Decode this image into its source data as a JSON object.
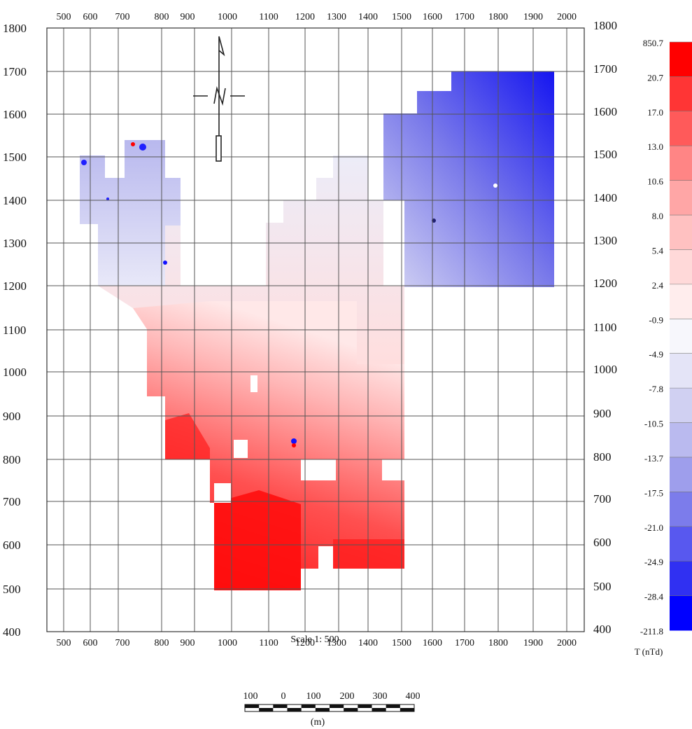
{
  "map": {
    "x_ticks": [
      "500",
      "600",
      "700",
      "800",
      "900",
      "1000",
      "1100",
      "1200",
      "1300",
      "1400",
      "1500",
      "1600",
      "1700",
      "1800",
      "1900",
      "2000"
    ],
    "y_ticks": [
      "1800",
      "1700",
      "1600",
      "1500",
      "1400",
      "1300",
      "1200",
      "1100",
      "1000",
      "900",
      "800",
      "700",
      "600",
      "500",
      "400"
    ],
    "scale_text": "Scale 1: 500",
    "north_symbol": "north-arrow-icon"
  },
  "legend": {
    "unit": "T (nTd)",
    "breaks": [
      "850.7",
      "20.7",
      "17.0",
      "13.0",
      "10.6",
      "8.0",
      "5.4",
      "2.4",
      "-0.9",
      "-4.9",
      "-7.8",
      "-10.5",
      "-13.7",
      "-17.5",
      "-21.0",
      "-24.9",
      "-28.4",
      "-211.8"
    ],
    "colors": [
      "#ff0000",
      "#ff3535",
      "#ff5a5a",
      "#ff8585",
      "#ffa6a6",
      "#ffc1c1",
      "#ffd9d9",
      "#ffeded",
      "#f7f7fc",
      "#e4e4f7",
      "#d0d0f2",
      "#babaef",
      "#9e9eec",
      "#7c7ceb",
      "#5858ef",
      "#3030f2",
      "#0000ff"
    ]
  },
  "scale_bar": {
    "labels": [
      "100",
      "0",
      "100",
      "200",
      "300",
      "400"
    ],
    "unit": "(m)"
  }
}
